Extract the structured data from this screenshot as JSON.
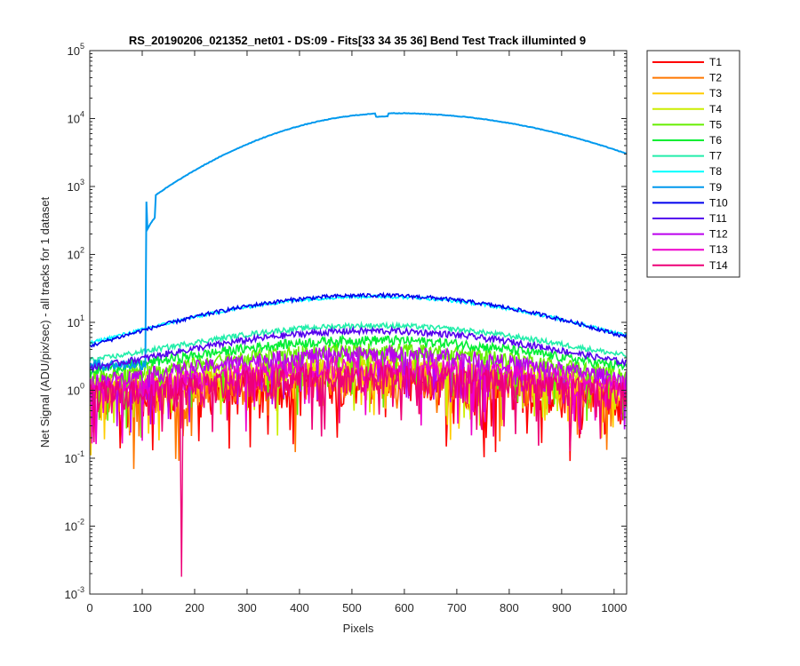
{
  "chart_data": {
    "type": "line",
    "title": "RS_20190206_021352_net01 - DS:09 - Fits[33  34  35  36]   Bend Test      Track illuminted 9",
    "xlabel": "Pixels",
    "ylabel": "Net Signal (ADU/pix/sec) - all tracks for 1 dataset",
    "xlim": [
      0,
      1024
    ],
    "ylim": [
      0.001,
      100000
    ],
    "yscale": "log",
    "xticks": [
      "0",
      "100",
      "200",
      "300",
      "400",
      "500",
      "600",
      "700",
      "800",
      "900",
      "1000"
    ],
    "yticks": [
      {
        "base": "10",
        "exp": "-3"
      },
      {
        "base": "10",
        "exp": "-2"
      },
      {
        "base": "10",
        "exp": "-1"
      },
      {
        "base": "10",
        "exp": "0"
      },
      {
        "base": "10",
        "exp": "1"
      },
      {
        "base": "10",
        "exp": "2"
      },
      {
        "base": "10",
        "exp": "3"
      },
      {
        "base": "10",
        "exp": "4"
      },
      {
        "base": "10",
        "exp": "5"
      }
    ],
    "grid": false,
    "legend_position": "outside-top-right",
    "series": [
      {
        "name": "T1",
        "color": "#ff0000",
        "peak": 1.5,
        "edge": 0.6,
        "noise": 0.55
      },
      {
        "name": "T2",
        "color": "#ff7700",
        "peak": 1.7,
        "edge": 0.7,
        "noise": 0.5
      },
      {
        "name": "T3",
        "color": "#ffcc00",
        "peak": 2.0,
        "edge": 0.8,
        "noise": 0.4
      },
      {
        "name": "T4",
        "color": "#ccee00",
        "peak": 2.6,
        "edge": 1.0,
        "noise": 0.3
      },
      {
        "name": "T5",
        "color": "#66ee00",
        "peak": 4.0,
        "edge": 1.2,
        "noise": 0.22
      },
      {
        "name": "T6",
        "color": "#00ee33",
        "peak": 5.5,
        "edge": 1.4,
        "noise": 0.15
      },
      {
        "name": "T7",
        "color": "#22eeaa",
        "peak": 9.0,
        "edge": 1.8,
        "noise": 0.08
      },
      {
        "name": "T8",
        "color": "#00ffff",
        "peak": 24.0,
        "edge": 2.0,
        "noise": 0.05
      },
      {
        "name": "T9",
        "color": "#0099ee",
        "peak": 12000,
        "edge": 2.0,
        "noise": 0.01
      },
      {
        "name": "T10",
        "color": "#0000ee",
        "peak": 25.0,
        "edge": 1.3,
        "noise": 0.06
      },
      {
        "name": "T11",
        "color": "#5500ee",
        "peak": 7.5,
        "edge": 1.3,
        "noise": 0.1
      },
      {
        "name": "T12",
        "color": "#bb00ee",
        "peak": 3.5,
        "edge": 1.0,
        "noise": 0.25
      },
      {
        "name": "T13",
        "color": "#ee00cc",
        "peak": 2.2,
        "edge": 0.9,
        "noise": 0.35
      },
      {
        "name": "T14",
        "color": "#ee0077",
        "peak": 1.6,
        "edge": 0.8,
        "noise": 0.45
      }
    ]
  }
}
